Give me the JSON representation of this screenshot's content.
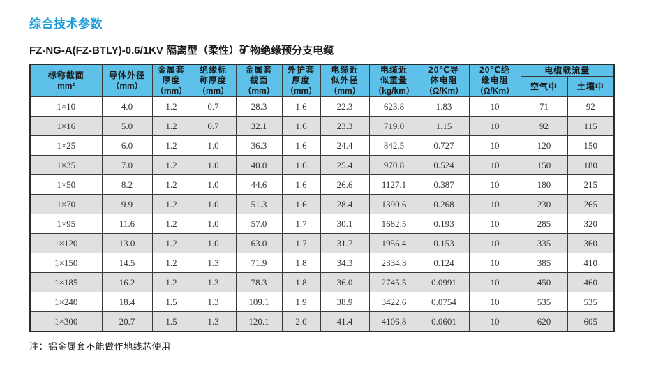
{
  "page": {
    "title": "综合技术参数",
    "subtitle": "FZ-NG-A(FZ-BTLY)-0.6/1KV 隔离型（柔性）矿物绝缘预分支电缆",
    "note": "注：铝金属套不能做作地线芯使用"
  },
  "colors": {
    "title_blue": "#1b9cd9",
    "header_bg": "#5ec1e9",
    "row_alt_bg": "#e0e0e0",
    "border": "#3a3a3a"
  },
  "table": {
    "headers": [
      [
        "标称截面",
        "mm²"
      ],
      [
        "导体外径",
        "（mm）"
      ],
      [
        "金属套",
        "厚度",
        "（mm）"
      ],
      [
        "绝缘标",
        "称厚度",
        "（mm）"
      ],
      [
        "金属套",
        "截面",
        "（mm）"
      ],
      [
        "外护套",
        "厚度",
        "（mm）"
      ],
      [
        "电缆近",
        "似外径",
        "（mm）"
      ],
      [
        "电缆近",
        "似重量",
        "（kg/km）"
      ],
      [
        "20℃导",
        "体电阻",
        "（Ω/Km）"
      ],
      [
        "20℃绝",
        "缘电阻",
        "（Ω/Km）"
      ]
    ],
    "ampacity": {
      "label": "电缆载流量",
      "sub": [
        "空气中",
        "土壤中"
      ]
    },
    "rows": [
      [
        "1×10",
        "4.0",
        "1.2",
        "0.7",
        "28.3",
        "1.6",
        "22.3",
        "623.8",
        "1.83",
        "10",
        "71",
        "92"
      ],
      [
        "1×16",
        "5.0",
        "1.2",
        "0.7",
        "32.1",
        "1.6",
        "23.3",
        "719.0",
        "1.15",
        "10",
        "92",
        "115"
      ],
      [
        "1×25",
        "6.0",
        "1.2",
        "1.0",
        "36.3",
        "1.6",
        "24.4",
        "842.5",
        "0.727",
        "10",
        "120",
        "150"
      ],
      [
        "1×35",
        "7.0",
        "1.2",
        "1.0",
        "40.0",
        "1.6",
        "25.4",
        "970.8",
        "0.524",
        "10",
        "150",
        "180"
      ],
      [
        "1×50",
        "8.2",
        "1.2",
        "1.0",
        "44.6",
        "1.6",
        "26.6",
        "1127.1",
        "0.387",
        "10",
        "180",
        "215"
      ],
      [
        "1×70",
        "9.9",
        "1.2",
        "1.0",
        "51.3",
        "1.6",
        "28.4",
        "1390.6",
        "0.268",
        "10",
        "230",
        "265"
      ],
      [
        "1×95",
        "11.6",
        "1.2",
        "1.0",
        "57.0",
        "1.7",
        "30.1",
        "1682.5",
        "0.193",
        "10",
        "285",
        "320"
      ],
      [
        "1×120",
        "13.0",
        "1.2",
        "1.0",
        "63.0",
        "1.7",
        "31.7",
        "1956.4",
        "0.153",
        "10",
        "335",
        "360"
      ],
      [
        "1×150",
        "14.5",
        "1.2",
        "1.3",
        "71.9",
        "1.8",
        "34.3",
        "2334.3",
        "0.124",
        "10",
        "385",
        "410"
      ],
      [
        "1×185",
        "16.2",
        "1.2",
        "1.3",
        "78.3",
        "1.8",
        "36.0",
        "2745.5",
        "0.0991",
        "10",
        "450",
        "460"
      ],
      [
        "1×240",
        "18.4",
        "1.5",
        "1.3",
        "109.1",
        "1.9",
        "38.9",
        "3422.6",
        "0.0754",
        "10",
        "535",
        "535"
      ],
      [
        "1×300",
        "20.7",
        "1.5",
        "1.3",
        "120.1",
        "2.0",
        "41.4",
        "4106.8",
        "0.0601",
        "10",
        "620",
        "605"
      ]
    ]
  }
}
